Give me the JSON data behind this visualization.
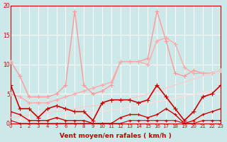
{
  "x": [
    0,
    1,
    2,
    3,
    4,
    5,
    6,
    7,
    8,
    9,
    10,
    11,
    12,
    13,
    14,
    15,
    16,
    17,
    18,
    19,
    20,
    21,
    22,
    23
  ],
  "series": [
    {
      "values": [
        10.5,
        8.0,
        4.5,
        4.5,
        4.5,
        5.0,
        6.5,
        19.0,
        6.5,
        5.0,
        5.5,
        6.5,
        10.5,
        10.5,
        10.5,
        11.0,
        19.0,
        14.0,
        8.5,
        8.0,
        9.0,
        8.5,
        8.5,
        9.0
      ],
      "color": "#ff9999",
      "alpha": 1.0,
      "lw": 1.0,
      "marker": "+",
      "ms": 4
    },
    {
      "values": [
        5.0,
        4.5,
        3.5,
        3.5,
        3.5,
        4.0,
        4.5,
        5.0,
        5.5,
        6.0,
        6.5,
        7.0,
        10.5,
        10.5,
        10.5,
        10.0,
        14.0,
        14.5,
        13.5,
        9.5,
        8.5,
        8.5,
        8.5,
        9.0
      ],
      "color": "#ffaaaa",
      "alpha": 1.0,
      "lw": 1.0,
      "marker": "+",
      "ms": 4
    },
    {
      "values": [
        1.0,
        1.2,
        1.4,
        1.6,
        1.8,
        2.0,
        2.2,
        2.5,
        2.8,
        3.0,
        3.2,
        3.5,
        3.8,
        4.2,
        4.6,
        5.0,
        5.5,
        6.0,
        6.5,
        7.0,
        7.5,
        8.0,
        8.5,
        9.0
      ],
      "color": "#ffcccc",
      "alpha": 1.0,
      "lw": 1.0,
      "marker": null,
      "ms": 0
    },
    {
      "values": [
        0.5,
        0.6,
        0.7,
        0.9,
        1.0,
        1.1,
        1.3,
        1.5,
        1.7,
        1.9,
        2.1,
        2.3,
        2.5,
        2.8,
        3.1,
        3.4,
        3.7,
        4.0,
        4.3,
        4.6,
        4.9,
        5.2,
        5.5,
        5.8
      ],
      "color": "#ffdddd",
      "alpha": 1.0,
      "lw": 1.0,
      "marker": null,
      "ms": 0
    },
    {
      "values": [
        6.5,
        2.5,
        2.5,
        1.0,
        2.5,
        3.0,
        2.5,
        2.0,
        2.0,
        0.5,
        3.5,
        4.0,
        4.0,
        4.0,
        3.5,
        4.0,
        6.5,
        4.5,
        2.5,
        0.5,
        2.0,
        4.5,
        5.0,
        6.5
      ],
      "color": "#cc0000",
      "alpha": 1.0,
      "lw": 1.2,
      "marker": "+",
      "ms": 4
    },
    {
      "values": [
        2.0,
        1.5,
        0.5,
        0.5,
        0.5,
        1.0,
        0.5,
        0.5,
        0.5,
        0.0,
        0.0,
        0.0,
        1.0,
        1.5,
        1.5,
        1.0,
        1.5,
        2.5,
        1.5,
        0.0,
        0.5,
        1.5,
        2.0,
        2.5
      ],
      "color": "#cc0000",
      "alpha": 1.0,
      "lw": 1.0,
      "marker": "+",
      "ms": 3
    },
    {
      "values": [
        0.5,
        0.0,
        0.0,
        0.0,
        0.0,
        0.0,
        0.0,
        0.0,
        0.0,
        0.0,
        0.0,
        0.0,
        0.0,
        0.5,
        0.5,
        0.5,
        0.5,
        0.5,
        0.5,
        0.0,
        0.0,
        0.5,
        0.5,
        0.5
      ],
      "color": "#cc0000",
      "alpha": 1.0,
      "lw": 0.8,
      "marker": "+",
      "ms": 3
    }
  ],
  "xlabel": "Vent moyen/en rafales ( km/h )",
  "xlim": [
    0,
    23
  ],
  "ylim": [
    0,
    20
  ],
  "yticks": [
    0,
    5,
    10,
    15,
    20
  ],
  "xticks": [
    0,
    1,
    2,
    3,
    4,
    5,
    6,
    7,
    8,
    9,
    10,
    11,
    12,
    13,
    14,
    15,
    16,
    17,
    18,
    19,
    20,
    21,
    22,
    23
  ],
  "bg_color": "#cce8e8",
  "grid_color": "#ffffff",
  "tick_color": "#cc0000",
  "spine_color": "#cc0000"
}
